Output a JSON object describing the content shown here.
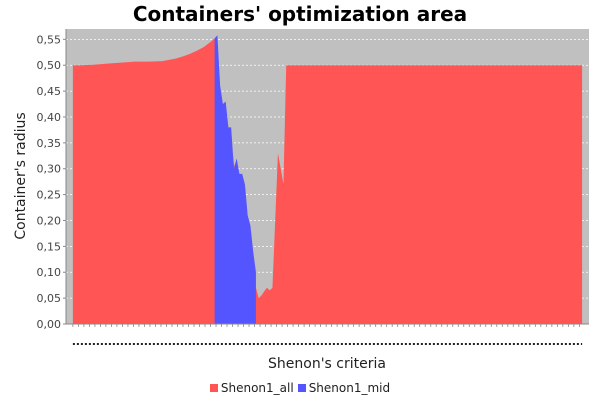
{
  "chart_data": {
    "type": "area",
    "title": "Containers' optimization area",
    "xlabel": "Shenon's criteria",
    "ylabel": "Container's radius",
    "ylim": [
      0,
      0.57
    ],
    "yticks": [
      "0,00",
      "0,05",
      "0,10",
      "0,15",
      "0,20",
      "0,25",
      "0,30",
      "0,35",
      "0,40",
      "0,45",
      "0,50",
      "0,55"
    ],
    "grid": true,
    "legend_position": "bottom",
    "colors": {
      "plot_background": "#c0c0c0",
      "grid": "#ffffff"
    },
    "series": [
      {
        "name": "Shenon1_all",
        "color": "#ff5555",
        "x": [
          5,
          10,
          20,
          30,
          40,
          50,
          60,
          70,
          80,
          85,
          90,
          95,
          100,
          105,
          108,
          110,
          112,
          114,
          116,
          118,
          120,
          122,
          124,
          126,
          128,
          130,
          132,
          134,
          136,
          138,
          140,
          142,
          144,
          146,
          148,
          150,
          152,
          154,
          156,
          158,
          160,
          170,
          180,
          190,
          200,
          210,
          220,
          230,
          240,
          250,
          260,
          270,
          280,
          290,
          300,
          310,
          320,
          330,
          340,
          350,
          360,
          375
        ],
        "values": [
          0.5,
          0.5,
          0.501,
          0.503,
          0.505,
          0.507,
          0.507,
          0.508,
          0.513,
          0.517,
          0.522,
          0.528,
          0.535,
          0.545,
          0.552,
          0.508,
          0.45,
          0.415,
          0.4,
          0.38,
          0.35,
          0.31,
          0.29,
          0.26,
          0.22,
          0.19,
          0.15,
          0.11,
          0.08,
          0.07,
          0.05,
          0.055,
          0.063,
          0.07,
          0.065,
          0.07,
          0.2,
          0.33,
          0.3,
          0.27,
          0.5,
          0.5,
          0.5,
          0.5,
          0.5,
          0.5,
          0.5,
          0.5,
          0.5,
          0.5,
          0.5,
          0.5,
          0.5,
          0.5,
          0.5,
          0.5,
          0.5,
          0.5,
          0.5,
          0.5,
          0.5,
          0.5
        ]
      },
      {
        "name": "Shenon1_mid",
        "color": "#5555ff",
        "x": [
          108,
          110,
          112,
          114,
          116,
          118,
          120,
          122,
          124,
          126,
          128,
          130,
          132,
          134,
          136,
          138
        ],
        "values": [
          0.552,
          0.558,
          0.46,
          0.425,
          0.43,
          0.38,
          0.38,
          0.3,
          0.32,
          0.29,
          0.29,
          0.27,
          0.21,
          0.19,
          0.14,
          0.1
        ]
      }
    ]
  }
}
